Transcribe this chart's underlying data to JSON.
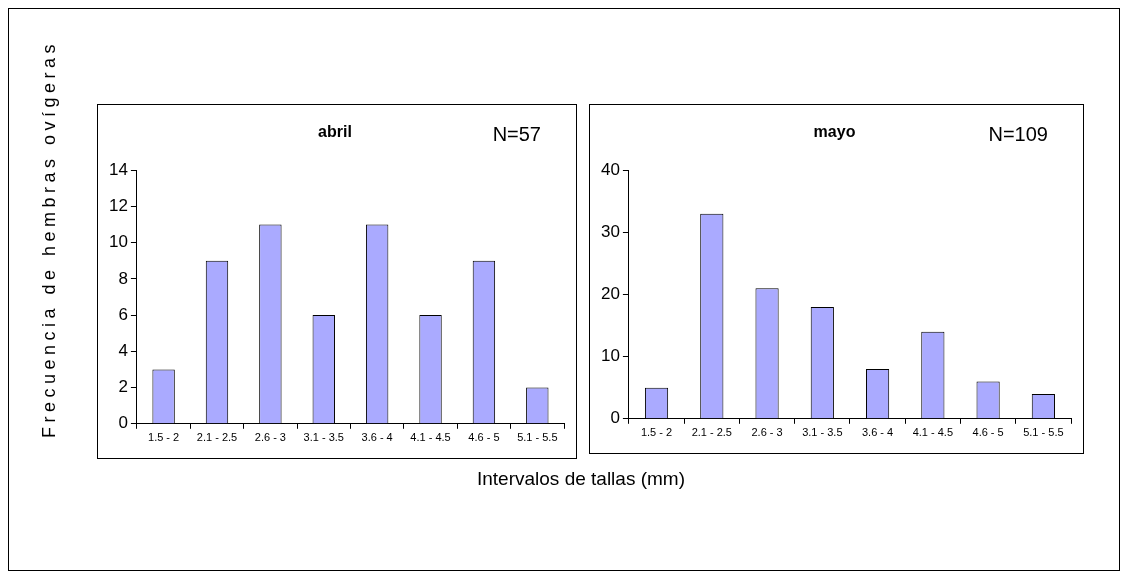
{
  "chart_data": [
    {
      "type": "bar",
      "title": "abril",
      "ylabel": "Frecuencia de hembras ovígeras",
      "xlabel": "Intervalos de tallas (mm)",
      "annotations": [
        "N=57"
      ],
      "categories": [
        "1.5 - 2",
        "2.1 - 2.5",
        "2.6 - 3",
        "3.1 - 3.5",
        "3.6 - 4",
        "4.1 - 4.5",
        "4.6 - 5",
        "5.1 - 5.5"
      ],
      "values": [
        3,
        9,
        11,
        6,
        11,
        6,
        9,
        2
      ],
      "color": "#aaaaff",
      "ylim": [
        0,
        14
      ],
      "yticks": [
        0,
        2,
        4,
        6,
        8,
        10,
        12,
        14
      ]
    },
    {
      "type": "bar",
      "title": "mayo",
      "annotations": [
        "N=109"
      ],
      "categories": [
        "1.5 - 2",
        "2.1 - 2.5",
        "2.6 - 3",
        "3.1 - 3.5",
        "3.6 - 4",
        "4.1 - 4.5",
        "4.6 - 5",
        "5.1 - 5.5"
      ],
      "values": [
        5,
        33,
        21,
        18,
        8,
        14,
        6,
        4
      ],
      "color": "#aaaaff",
      "ylim": [
        0,
        40
      ],
      "yticks": [
        0,
        10,
        20,
        30,
        40
      ]
    }
  ]
}
